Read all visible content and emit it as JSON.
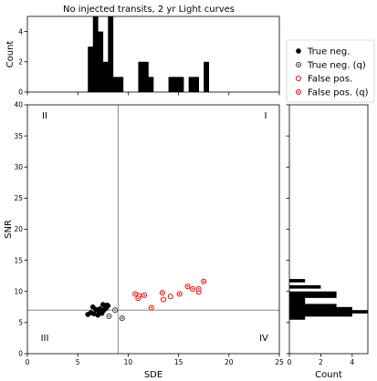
{
  "chart_data": {
    "title": "No injected transits, 2 yr Light curves",
    "type": "scatter",
    "scatter": {
      "xlabel": "SDE",
      "ylabel": "SNR",
      "xlim": [
        0,
        25
      ],
      "ylim": [
        0,
        40
      ],
      "xticks": [
        "0",
        "5",
        "10",
        "15",
        "20",
        "25"
      ],
      "yticks": [
        "0",
        "5",
        "10",
        "15",
        "20",
        "25",
        "30",
        "35",
        "40"
      ],
      "threshold_sde": 9,
      "threshold_snr": 7,
      "quadrant_labels": [
        "I",
        "II",
        "III",
        "IV"
      ],
      "series": [
        {
          "name": "True neg.",
          "marker": "filled",
          "color": "#000000",
          "points": [
            [
              6.0,
              6.3
            ],
            [
              6.3,
              6.6
            ],
            [
              6.5,
              7.5
            ],
            [
              6.6,
              6.4
            ],
            [
              6.8,
              7.1
            ],
            [
              7.0,
              6.2
            ],
            [
              7.1,
              6.8
            ],
            [
              7.2,
              7.2
            ],
            [
              7.4,
              6.5
            ],
            [
              7.5,
              7.9
            ],
            [
              7.6,
              7.0
            ],
            [
              7.7,
              7.6
            ],
            [
              7.8,
              7.3
            ],
            [
              7.9,
              7.8
            ],
            [
              8.0,
              7.7
            ]
          ]
        },
        {
          "name": "True neg. (q)",
          "marker": "dotted-circle",
          "color": "#333333",
          "points": [
            [
              8.1,
              6.0
            ],
            [
              8.7,
              7.0
            ],
            [
              9.4,
              5.7
            ]
          ]
        },
        {
          "name": "False pos.",
          "marker": "open-circle",
          "color": "#ee0000",
          "points": [
            [
              11.1,
              9.3
            ],
            [
              13.5,
              8.7
            ],
            [
              14.2,
              9.2
            ],
            [
              17.0,
              9.9
            ]
          ]
        },
        {
          "name": "False pos. (q)",
          "marker": "dotted-circle",
          "color": "#ee0000",
          "points": [
            [
              10.7,
              9.6
            ],
            [
              11.0,
              8.9
            ],
            [
              11.6,
              9.4
            ],
            [
              12.3,
              7.4
            ],
            [
              13.4,
              9.8
            ],
            [
              15.1,
              9.6
            ],
            [
              15.9,
              10.8
            ],
            [
              16.4,
              10.4
            ],
            [
              17.0,
              10.4
            ],
            [
              17.5,
              11.6
            ]
          ]
        }
      ]
    },
    "top_hist": {
      "ylabel": "Count",
      "ylim": [
        0,
        5
      ],
      "yticks": [
        "0",
        "2",
        "4"
      ],
      "bin_width": 0.5,
      "bins": [
        [
          6.0,
          3
        ],
        [
          6.5,
          5
        ],
        [
          7.0,
          4
        ],
        [
          7.5,
          2
        ],
        [
          8.0,
          5
        ],
        [
          8.5,
          1
        ],
        [
          9.0,
          1
        ],
        [
          11.0,
          2
        ],
        [
          11.5,
          2
        ],
        [
          12.0,
          1
        ],
        [
          14.0,
          1
        ],
        [
          14.5,
          1
        ],
        [
          15.0,
          1
        ],
        [
          16.0,
          1
        ],
        [
          16.5,
          1
        ],
        [
          17.5,
          2
        ]
      ]
    },
    "right_hist": {
      "xlabel": "Count",
      "xlim": [
        0,
        5
      ],
      "xticks": [
        "0",
        "2",
        "4"
      ],
      "bin_width": 0.5,
      "bins": [
        [
          5.5,
          1
        ],
        [
          6.0,
          4
        ],
        [
          6.5,
          5
        ],
        [
          7.0,
          4
        ],
        [
          7.5,
          3
        ],
        [
          8.0,
          1
        ],
        [
          8.5,
          1
        ],
        [
          9.0,
          3
        ],
        [
          9.5,
          3
        ],
        [
          10.5,
          2
        ],
        [
          11.5,
          1
        ]
      ]
    },
    "legend": {
      "placement": "right of top histogram",
      "entries": [
        "True neg.",
        "True neg. (q)",
        "False pos.",
        "False pos. (q)"
      ]
    }
  }
}
